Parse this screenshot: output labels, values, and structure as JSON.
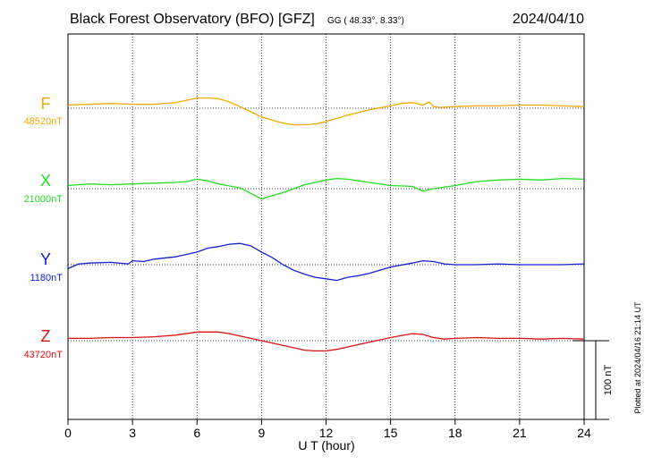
{
  "header": {
    "title": "Black Forest Observatory (BFO)  [GFZ]",
    "coords": "GG ( 48.33°,   8.33°)",
    "date": "2024/04/10"
  },
  "footer": {
    "plotted": "Plotted at 2024/04/16 21:14 UT"
  },
  "chart_data": {
    "type": "line",
    "xlabel": "U T (hour)",
    "xlim": [
      0,
      24
    ],
    "xticks": [
      "0",
      "3",
      "6",
      "9",
      "12",
      "15",
      "18",
      "21",
      "24"
    ],
    "scale_bar": {
      "label": "100 nT",
      "value_nT": 100
    },
    "series": [
      {
        "name": "F",
        "baseline_label": "48520nT",
        "color": "#f5a800",
        "baseline_nT": 48520,
        "x": [
          0,
          1,
          2,
          3,
          4,
          5,
          5.5,
          6,
          6.5,
          7,
          7.5,
          8,
          9,
          10,
          10.5,
          11,
          11.5,
          12,
          13,
          14,
          15,
          15.5,
          16,
          16.5,
          16.8,
          17,
          17.3,
          18,
          19,
          20,
          21,
          22,
          23,
          24
        ],
        "y": [
          48524,
          48525,
          48526,
          48525,
          48525,
          48527,
          48530,
          48533,
          48533,
          48532,
          48528,
          48522,
          48509,
          48501,
          48499,
          48499,
          48500,
          48503,
          48511,
          48518,
          48523,
          48526,
          48527,
          48524,
          48528,
          48522,
          48521,
          48522,
          48523,
          48523,
          48524,
          48524,
          48523,
          48522
        ]
      },
      {
        "name": "X",
        "baseline_label": "21000nT",
        "color": "#22dd22",
        "baseline_nT": 21000,
        "x": [
          0,
          1,
          2,
          3,
          4,
          5,
          5.5,
          6,
          6.5,
          7,
          8,
          8.5,
          9,
          9.5,
          10,
          10.5,
          11,
          11.5,
          12,
          12.5,
          13,
          13.5,
          14,
          15,
          16,
          16.5,
          17,
          18,
          19,
          20,
          21,
          22,
          23,
          24
        ],
        "y": [
          21004,
          21006,
          21005,
          21006,
          21007,
          21008,
          21009,
          21012,
          21010,
          21006,
          21001,
          20994,
          20987,
          20991,
          20995,
          21000,
          21005,
          21008,
          21011,
          21013,
          21012,
          21010,
          21008,
          21004,
          21003,
          20997,
          21000,
          21004,
          21009,
          21011,
          21012,
          21011,
          21013,
          21012
        ]
      },
      {
        "name": "Y",
        "baseline_label": "1180nT",
        "color": "#1122cc",
        "baseline_nT": 1180,
        "x": [
          0,
          0.5,
          1,
          2,
          2.8,
          3,
          3.5,
          4,
          5,
          6,
          6.5,
          7,
          7.5,
          8,
          8.5,
          9,
          9.5,
          10,
          10.5,
          11,
          11.5,
          12,
          12.5,
          13,
          13.5,
          14,
          15,
          16,
          16.5,
          17,
          17.5,
          18,
          19,
          20,
          21,
          22,
          23,
          24
        ],
        "y": [
          1175,
          1181,
          1182,
          1183,
          1181,
          1185,
          1184,
          1187,
          1190,
          1196,
          1201,
          1203,
          1206,
          1207,
          1204,
          1196,
          1189,
          1180,
          1173,
          1168,
          1164,
          1162,
          1160,
          1164,
          1166,
          1169,
          1177,
          1182,
          1185,
          1184,
          1181,
          1180,
          1180,
          1181,
          1180,
          1180,
          1180,
          1181
        ]
      },
      {
        "name": "Z",
        "baseline_label": "43720nT",
        "color": "#dd1111",
        "baseline_nT": 43720,
        "x": [
          0,
          1,
          2,
          3,
          4,
          5,
          6,
          7,
          7.5,
          8,
          9,
          10,
          10.5,
          11,
          11.5,
          12,
          12.5,
          13,
          14,
          15,
          16,
          16.5,
          17,
          17.5,
          18,
          19,
          20,
          21,
          22,
          23,
          24
        ],
        "y": [
          43723,
          43723,
          43724,
          43724,
          43725,
          43727,
          43731,
          43731,
          43729,
          43726,
          43720,
          43714,
          43711,
          43708,
          43707,
          43707,
          43709,
          43712,
          43718,
          43724,
          43729,
          43728,
          43724,
          43722,
          43723,
          43724,
          43723,
          43723,
          43722,
          43723,
          43722
        ]
      }
    ]
  }
}
